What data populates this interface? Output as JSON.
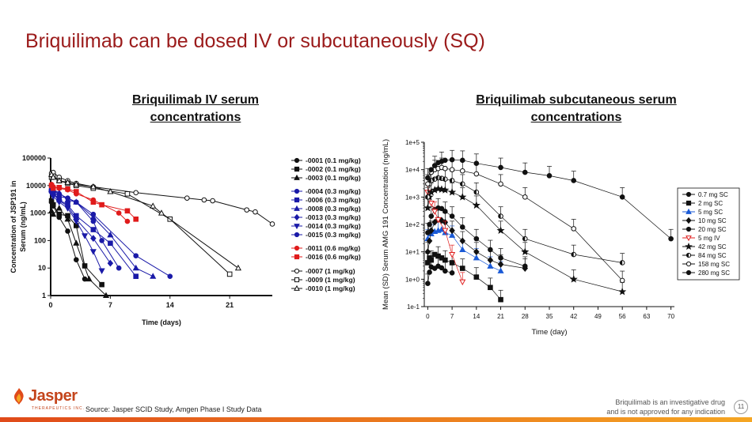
{
  "slide": {
    "title": "Briquilimab can be dosed IV or subcutaneously (SQ)",
    "source": "Source: Jasper SCID Study, Amgen Phase I Study Data",
    "disclaimer_line1": "Briquilimab is an investigative drug",
    "disclaimer_line2": "and is not approved for any indication",
    "page_number": "11",
    "logo_text": "Jasper",
    "logo_tagline": "THERAPEUTICS INC.",
    "colors": {
      "title": "#9b1b1b",
      "accent": "#e04a1a",
      "red_series": "#e01b1b",
      "blue_series": "#1a1aa8"
    }
  },
  "left_heading": {
    "line1": "Briquilimab IV serum",
    "line2": "concentrations"
  },
  "right_heading": {
    "line1": "Briquilimab subcutaneous serum",
    "line2": "concentrations"
  },
  "chart_data": [
    {
      "type": "line",
      "title": "Briquilimab IV serum concentrations",
      "xlabel": "Time (days)",
      "ylabel_line1": "Concentration of JSP191 in",
      "ylabel_line2": "Serum (ng/mL)",
      "yscale": "log",
      "xlim": [
        0,
        26
      ],
      "ylim": [
        1,
        100000
      ],
      "xticks": [
        0,
        7,
        14,
        21
      ],
      "yticks": [
        1,
        10,
        100,
        1000,
        10000,
        100000
      ],
      "ytick_labels": [
        "1",
        "10",
        "100",
        "1000",
        "10000",
        "100000"
      ],
      "series": [
        {
          "name": "-0001 (0.1 mg/kg)",
          "color": "#111111",
          "marker": "circle",
          "fill": true,
          "x": [
            0.1,
            0.3,
            1,
            2,
            3,
            4
          ],
          "y": [
            2500,
            1800,
            700,
            220,
            20,
            4
          ]
        },
        {
          "name": "-0002 (0.1 mg/kg)",
          "color": "#111111",
          "marker": "square",
          "fill": true,
          "x": [
            0.1,
            0.3,
            1,
            2,
            3,
            4,
            6
          ],
          "y": [
            2800,
            2000,
            900,
            800,
            350,
            12,
            2.5
          ]
        },
        {
          "name": "-0003 (0.1 mg/kg)",
          "color": "#111111",
          "marker": "triangle",
          "fill": true,
          "x": [
            0.1,
            0.3,
            1,
            2,
            3,
            4.5,
            6.5
          ],
          "y": [
            1200,
            900,
            1500,
            600,
            80,
            4,
            1
          ]
        },
        {
          "name": "-0004 (0.3 mg/kg)",
          "color": "#1a1aa8",
          "marker": "circle",
          "fill": true,
          "x": [
            0.1,
            0.3,
            1,
            2,
            3,
            5,
            10,
            14
          ],
          "y": [
            7000,
            6000,
            5000,
            3500,
            2500,
            900,
            28,
            5
          ]
        },
        {
          "name": "-0006 (0.3 mg/kg)",
          "color": "#1a1aa8",
          "marker": "square",
          "fill": true,
          "x": [
            0.1,
            0.3,
            1,
            2,
            3,
            5,
            7,
            10
          ],
          "y": [
            6500,
            5500,
            3000,
            2000,
            800,
            250,
            80,
            5
          ]
        },
        {
          "name": "-0008 (0.3 mg/kg)",
          "color": "#1a1aa8",
          "marker": "triangle",
          "fill": true,
          "x": [
            0.1,
            0.3,
            1,
            2,
            3,
            5,
            7,
            10,
            12
          ],
          "y": [
            8000,
            7000,
            5500,
            3000,
            2500,
            700,
            160,
            10,
            5
          ]
        },
        {
          "name": "-0013 (0.3 mg/kg)",
          "color": "#1a1aa8",
          "marker": "diamond",
          "fill": true,
          "x": [
            0.1,
            0.3,
            1,
            2,
            3,
            5,
            7
          ],
          "y": [
            6000,
            5000,
            2800,
            1800,
            600,
            120,
            15
          ]
        },
        {
          "name": "-0014 (0.3 mg/kg)",
          "color": "#1a1aa8",
          "marker": "tri-down",
          "fill": true,
          "x": [
            0.1,
            0.3,
            1,
            2,
            3,
            4,
            5,
            6
          ],
          "y": [
            5000,
            4000,
            2500,
            1500,
            500,
            150,
            40,
            8
          ]
        },
        {
          "name": "-0015 (0.3 mg/kg)",
          "color": "#1a1aa8",
          "marker": "circle",
          "fill": true,
          "x": [
            0.1,
            0.3,
            1,
            2,
            3,
            5,
            6,
            8
          ],
          "y": [
            9000,
            8500,
            4000,
            3500,
            2500,
            500,
            100,
            10
          ]
        },
        {
          "name": "-0011 (0.6 mg/kg)",
          "color": "#e01b1b",
          "marker": "circle",
          "fill": true,
          "x": [
            0.1,
            0.3,
            1,
            2,
            3,
            5,
            8,
            9
          ],
          "y": [
            11000,
            9000,
            8000,
            7000,
            5000,
            3000,
            1000,
            500
          ]
        },
        {
          "name": "-0016 (0.6 mg/kg)",
          "color": "#e01b1b",
          "marker": "square",
          "fill": true,
          "x": [
            0.1,
            0.3,
            1,
            2,
            3,
            5,
            6,
            9,
            10
          ],
          "y": [
            10000,
            8000,
            8500,
            7500,
            6000,
            2500,
            2000,
            1200,
            600
          ]
        },
        {
          "name": "-0007 (1 mg/kg)",
          "color": "#111111",
          "marker": "circle",
          "fill": false,
          "x": [
            0.1,
            0.3,
            1,
            2,
            3,
            5,
            10,
            16,
            18,
            19,
            23,
            24,
            26
          ],
          "y": [
            28000,
            30000,
            20000,
            15000,
            12000,
            9000,
            5500,
            3500,
            3000,
            2800,
            1300,
            1100,
            400
          ]
        },
        {
          "name": "-0009 (1 mg/kg)",
          "color": "#111111",
          "marker": "square",
          "fill": false,
          "x": [
            0.1,
            0.3,
            1,
            2,
            3,
            5,
            9,
            14,
            21
          ],
          "y": [
            20000,
            22000,
            15000,
            12000,
            10000,
            8000,
            5000,
            600,
            6
          ]
        },
        {
          "name": "-0010 (1 mg/kg)",
          "color": "#111111",
          "marker": "triangle",
          "fill": false,
          "x": [
            0.1,
            0.3,
            1,
            2,
            3,
            5,
            7,
            12,
            13,
            22
          ],
          "y": [
            25000,
            20000,
            15000,
            13000,
            11000,
            9000,
            6000,
            1800,
            1000,
            10
          ]
        }
      ],
      "legend_groups": [
        [
          "-0001 (0.1 mg/kg)",
          "-0002 (0.1 mg/kg)",
          "-0003 (0.1 mg/kg)"
        ],
        [
          "-0004 (0.3 mg/kg)",
          "-0006 (0.3 mg/kg)",
          "-0008 (0.3 mg/kg)",
          "-0013 (0.3 mg/kg)",
          "-0014 (0.3 mg/kg)",
          "-0015 (0.3 mg/kg)"
        ],
        [
          "-0011 (0.6 mg/kg)",
          "-0016 (0.6 mg/kg)"
        ],
        [
          "-0007 (1 mg/kg)",
          "-0009 (1 mg/kg)",
          "-0010 (1 mg/kg)"
        ]
      ],
      "legend_position": "right"
    },
    {
      "type": "line",
      "title": "Briquilimab subcutaneous serum concentrations",
      "xlabel": "Time (day)",
      "ylabel": "Mean (SD) Serum AMG 191 Concentration (ng/mL)",
      "yscale": "log",
      "xlim": [
        -1,
        71
      ],
      "ylim": [
        0.1,
        100000
      ],
      "xticks": [
        0,
        7,
        14,
        21,
        28,
        35,
        42,
        49,
        56,
        63,
        70
      ],
      "yticks": [
        0.1,
        1,
        10,
        100,
        1000,
        10000,
        100000
      ],
      "ytick_labels": [
        "1e-1",
        "1e+0",
        "1e+1",
        "1e+2",
        "1e+3",
        "1e+4",
        "1e+5"
      ],
      "series": [
        {
          "name": "0.7 mg SC",
          "color": "#111111",
          "marker": "circle",
          "fill": true,
          "x": [
            0,
            0.5,
            1,
            2,
            3,
            4,
            5,
            7
          ],
          "y": [
            0.7,
            1.8,
            2.8,
            2.5,
            3.0,
            2.6,
            2.0,
            1.7
          ]
        },
        {
          "name": "2 mg SC",
          "color": "#111111",
          "marker": "square",
          "fill": true,
          "x": [
            0,
            0.5,
            1,
            2,
            3,
            4,
            5,
            7,
            10,
            14,
            18,
            21
          ],
          "y": [
            4,
            6,
            5,
            8,
            7,
            6,
            5,
            4,
            2.5,
            1.2,
            0.5,
            0.18
          ]
        },
        {
          "name": "5 mg SC",
          "color": "#1a5ad6",
          "marker": "triangle",
          "fill": true,
          "x": [
            0,
            0.5,
            1,
            2,
            3,
            4,
            5,
            7,
            10,
            14,
            18,
            21
          ],
          "y": [
            30,
            50,
            45,
            55,
            60,
            65,
            50,
            40,
            12,
            6,
            3,
            2
          ]
        },
        {
          "name": "10 mg SC",
          "color": "#111111",
          "marker": "diamond",
          "fill": true,
          "x": [
            0,
            0.5,
            1,
            2,
            3,
            4,
            5,
            7,
            10,
            14,
            18,
            21,
            28
          ],
          "y": [
            10,
            25,
            60,
            120,
            150,
            140,
            120,
            60,
            25,
            10,
            5,
            3.5,
            2.5
          ]
        },
        {
          "name": "20 mg SC",
          "color": "#111111",
          "marker": "circle",
          "fill": true,
          "x": [
            0,
            0.5,
            1,
            2,
            3,
            4,
            5,
            7,
            10,
            14,
            18,
            21,
            28
          ],
          "y": [
            50,
            100,
            200,
            350,
            400,
            380,
            300,
            200,
            80,
            30,
            12,
            6,
            3
          ]
        },
        {
          "name": "5 mg IV",
          "color": "#e02020",
          "marker": "tri-down",
          "fill": false,
          "x": [
            0,
            1,
            2,
            3,
            5,
            7,
            10
          ],
          "y": [
            1500,
            600,
            300,
            150,
            60,
            8,
            0.8
          ]
        },
        {
          "name": "42 mg SC",
          "color": "#111111",
          "marker": "star",
          "fill": true,
          "x": [
            0,
            0.5,
            1,
            2,
            3,
            4,
            5,
            7,
            10,
            14,
            21,
            28,
            42,
            56
          ],
          "y": [
            400,
            1000,
            1500,
            1800,
            2000,
            1900,
            1800,
            1500,
            1000,
            500,
            60,
            10,
            1,
            0.35
          ]
        },
        {
          "name": "84 mg SC",
          "color": "#111111",
          "marker": "half-circle",
          "fill": true,
          "x": [
            0,
            0.5,
            1,
            2,
            3,
            4,
            5,
            7,
            10,
            14,
            21,
            28,
            42,
            56
          ],
          "y": [
            1000,
            3000,
            4000,
            4500,
            5000,
            4800,
            4500,
            4000,
            3000,
            1500,
            200,
            30,
            8,
            4
          ]
        },
        {
          "name": "158 mg SC",
          "color": "#111111",
          "marker": "circle",
          "fill": false,
          "x": [
            0,
            1,
            2,
            3,
            4,
            5,
            7,
            10,
            14,
            21,
            28,
            42,
            56
          ],
          "y": [
            3000,
            8000,
            10000,
            11000,
            12000,
            11000,
            10000,
            9000,
            7000,
            3000,
            1000,
            70,
            0.9
          ]
        },
        {
          "name": "280 mg SC",
          "color": "#111111",
          "marker": "circle",
          "fill": true,
          "x": [
            0,
            1,
            2,
            3,
            4,
            5,
            7,
            10,
            14,
            21,
            28,
            35,
            42,
            56,
            70
          ],
          "y": [
            5000,
            10000,
            14000,
            18000,
            20000,
            22000,
            23000,
            22000,
            17000,
            12000,
            8000,
            6000,
            4000,
            1000,
            30
          ]
        }
      ],
      "legend_position": "right"
    }
  ]
}
